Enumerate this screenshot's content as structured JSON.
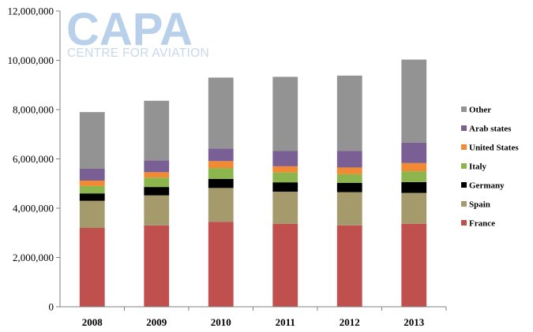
{
  "logo": {
    "name": "CAPA",
    "tagline": "CENTRE FOR AVIATION"
  },
  "chart_data": {
    "type": "bar",
    "stacked": true,
    "categories": [
      "2008",
      "2009",
      "2010",
      "2011",
      "2012",
      "2013"
    ],
    "ylim": [
      0,
      12000000
    ],
    "yticks": [
      {
        "value": 0,
        "label": "0"
      },
      {
        "value": 2000000,
        "label": "2,000,000"
      },
      {
        "value": 4000000,
        "label": "4,000,000"
      },
      {
        "value": 6000000,
        "label": "6,000,000"
      },
      {
        "value": 8000000,
        "label": "8,000,000"
      },
      {
        "value": 10000000,
        "label": "10,000,000"
      },
      {
        "value": 12000000,
        "label": "12,000,000"
      }
    ],
    "grid": false,
    "legend_position": "right",
    "series": [
      {
        "name": "France",
        "color": "#c0504d",
        "values": [
          3200000,
          3300000,
          3450000,
          3370000,
          3300000,
          3370000
        ]
      },
      {
        "name": "Spain",
        "color": "#a59a6b",
        "values": [
          1100000,
          1220000,
          1370000,
          1300000,
          1350000,
          1250000
        ]
      },
      {
        "name": "Germany",
        "color": "#000000",
        "values": [
          300000,
          340000,
          370000,
          380000,
          380000,
          440000
        ]
      },
      {
        "name": "Italy",
        "color": "#8db54e",
        "values": [
          300000,
          380000,
          440000,
          400000,
          350000,
          440000
        ]
      },
      {
        "name": "United States",
        "color": "#f18a33",
        "values": [
          220000,
          220000,
          280000,
          250000,
          270000,
          330000
        ]
      },
      {
        "name": "Arab states",
        "color": "#7a5f95",
        "values": [
          480000,
          480000,
          510000,
          620000,
          680000,
          830000
        ]
      },
      {
        "name": "Other",
        "color": "#939393",
        "values": [
          2300000,
          2420000,
          2880000,
          3010000,
          3050000,
          3370000
        ]
      }
    ]
  }
}
